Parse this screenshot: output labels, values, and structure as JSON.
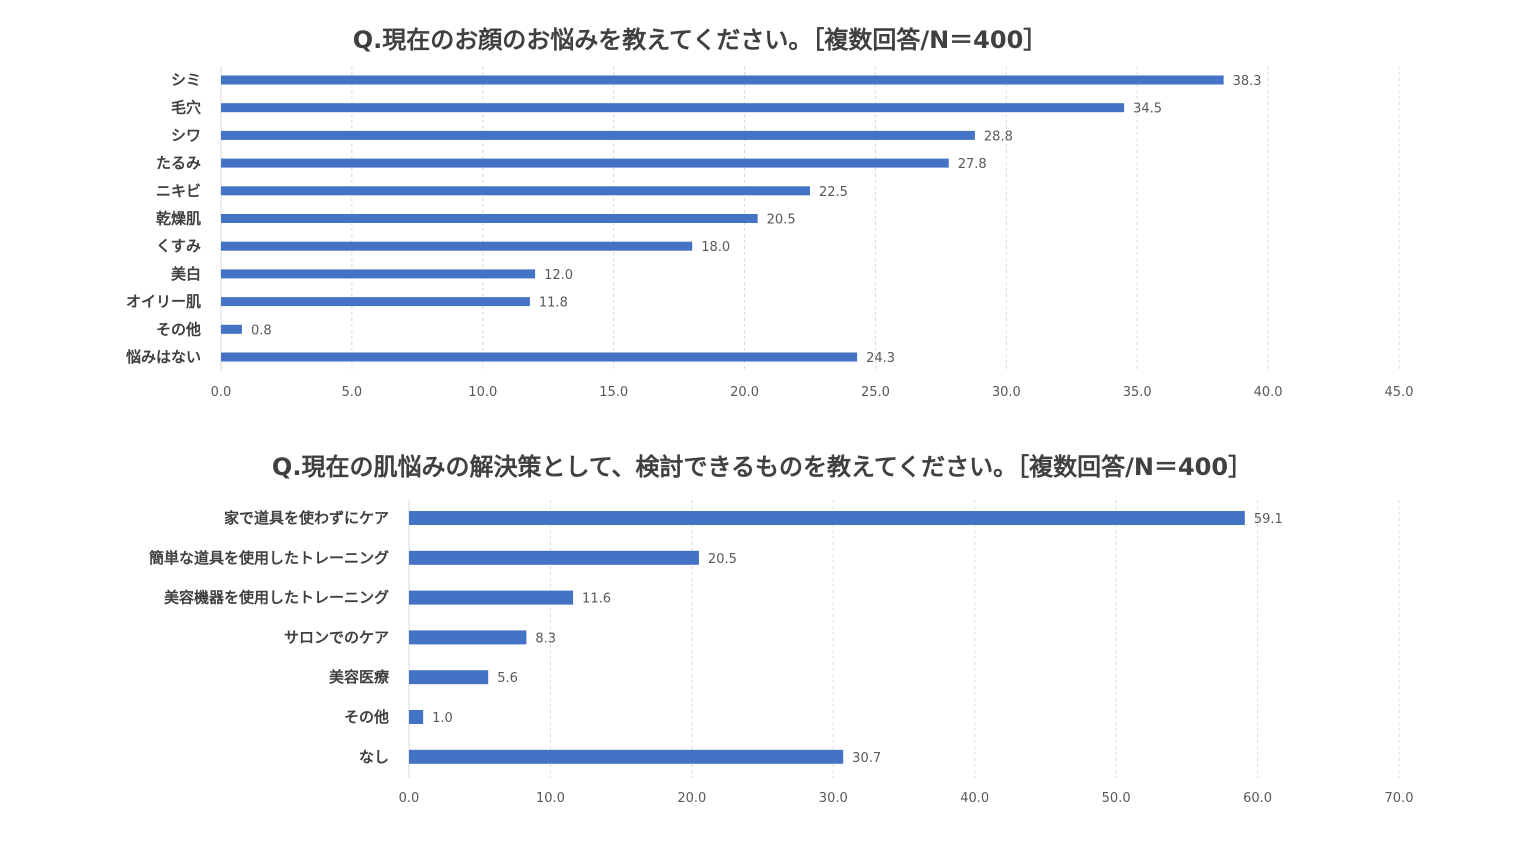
{
  "accent_color": "#4472C4",
  "chart_data": [
    {
      "type": "bar",
      "orientation": "horizontal",
      "title": "Q.現在のお顔のお悩みを教えてください。［複数回答/N＝400］",
      "categories": [
        "シミ",
        "毛穴",
        "シワ",
        "たるみ",
        "ニキビ",
        "乾燥肌",
        "くすみ",
        "美白",
        "オイリー肌",
        "その他",
        "悩みはない"
      ],
      "values": [
        38.3,
        34.5,
        28.8,
        27.8,
        22.5,
        20.5,
        18.0,
        12.0,
        11.8,
        0.8,
        24.3
      ],
      "value_labels": [
        "38.3",
        "34.5",
        "28.8",
        "27.8",
        "22.5",
        "20.5",
        "18.0",
        "12.0",
        "11.8",
        "0.8",
        "24.3"
      ],
      "xlim": [
        0,
        45
      ],
      "xticks": [
        "0.0",
        "5.0",
        "10.0",
        "15.0",
        "20.0",
        "25.0",
        "30.0",
        "35.0",
        "40.0",
        "45.0"
      ],
      "grid": "vertical dashed",
      "color": "#4472C4"
    },
    {
      "type": "bar",
      "orientation": "horizontal",
      "title": "Q.現在の肌悩みの解決策として、検討できるものを教えてください。［複数回答/N＝400］",
      "categories": [
        "家で道具を使わずにケア",
        "簡単な道具を使用したトレーニング",
        "美容機器を使用したトレーニング",
        "サロンでのケア",
        "美容医療",
        "その他",
        "なし"
      ],
      "values": [
        59.1,
        20.5,
        11.6,
        8.3,
        5.6,
        1.0,
        30.7
      ],
      "value_labels": [
        "59.1",
        "20.5",
        "11.6",
        "8.3",
        "5.6",
        "1.0",
        "30.7"
      ],
      "xlim": [
        0,
        70
      ],
      "xticks": [
        "0.0",
        "10.0",
        "20.0",
        "30.0",
        "40.0",
        "50.0",
        "60.0",
        "70.0"
      ],
      "grid": "vertical dashed",
      "color": "#4472C4"
    }
  ]
}
